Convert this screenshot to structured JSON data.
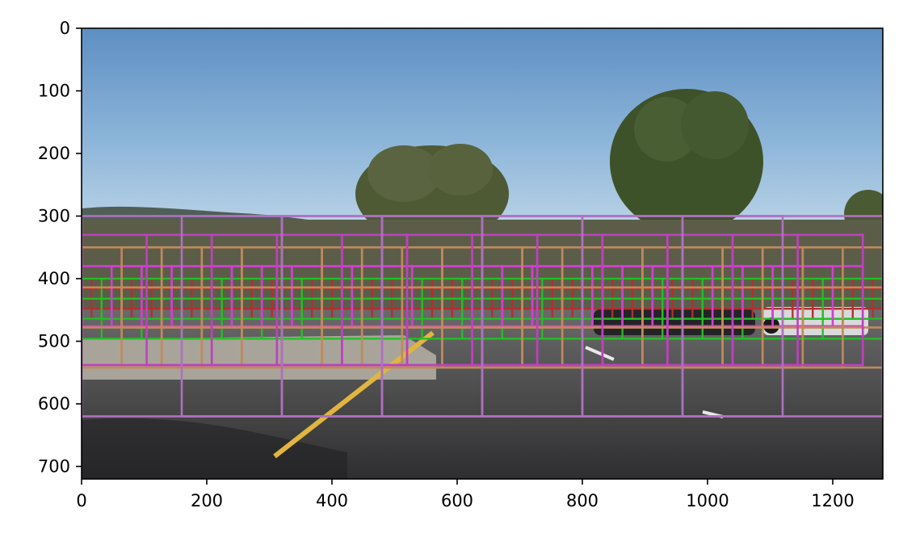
{
  "chart_data": {
    "type": "image",
    "title": "",
    "xlabel": "",
    "ylabel": "",
    "xlim": [
      0,
      1280
    ],
    "ylim": [
      720,
      0
    ],
    "x_ticks": [
      "0",
      "200",
      "400",
      "600",
      "800",
      "1000",
      "1200"
    ],
    "y_ticks": [
      "0",
      "100",
      "200",
      "300",
      "400",
      "500",
      "600",
      "700"
    ],
    "x_tick_values": [
      0,
      200,
      400,
      600,
      800,
      1000,
      1200
    ],
    "y_tick_values": [
      0,
      100,
      200,
      300,
      400,
      500,
      600,
      700
    ],
    "grid": false,
    "legend": "none",
    "window_series": [
      {
        "color": "#b03030",
        "window": 32,
        "step": 16,
        "y_start": 400,
        "y_stop": 464,
        "x_start": 0,
        "x_stop": 1280
      },
      {
        "color": "#22c022",
        "window": 64,
        "step": 32,
        "y_start": 400,
        "y_stop": 496,
        "x_start": 0,
        "x_stop": 1280
      },
      {
        "color": "#d040d0",
        "window": 96,
        "step": 48,
        "y_start": 380,
        "y_stop": 496,
        "x_start": 0,
        "x_stop": 1280
      },
      {
        "color": "#c08a5a",
        "window": 128,
        "step": 64,
        "y_start": 350,
        "y_stop": 550,
        "x_start": 0,
        "x_stop": 1280
      },
      {
        "color": "#c040c0",
        "window": 208,
        "step": 104,
        "y_start": 330,
        "y_stop": 610,
        "x_start": 0,
        "x_stop": 1280
      },
      {
        "color": "#b070c0",
        "window": 320,
        "step": 160,
        "y_start": 300,
        "y_stop": 700,
        "x_start": 0,
        "x_stop": 1280
      }
    ]
  }
}
